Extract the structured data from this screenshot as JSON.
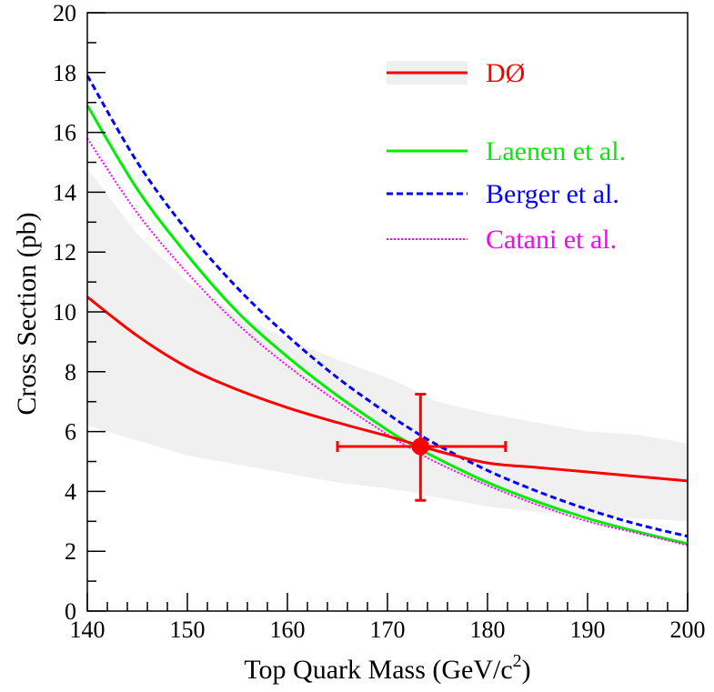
{
  "chart_data": {
    "type": "line",
    "xlabel": "Top Quark Mass (GeV/c",
    "xlabel_sup": "2",
    "xlabel_tail": ")",
    "ylabel": "Cross Section (pb)",
    "xlim": [
      140,
      200
    ],
    "ylim": [
      0,
      20
    ],
    "x_ticks": [
      "140",
      "150",
      "160",
      "170",
      "180",
      "190",
      "200"
    ],
    "y_ticks": [
      "0",
      "2",
      "4",
      "6",
      "8",
      "10",
      "12",
      "14",
      "16",
      "18",
      "20"
    ],
    "grid": false,
    "legend_position": "top-right",
    "band": {
      "name": "DØ",
      "color": "#f0f0f0",
      "x": [
        140,
        145,
        150,
        155,
        160,
        165,
        170,
        172,
        175,
        180,
        185,
        190,
        195,
        200
      ],
      "upper": [
        14.8,
        12.6,
        11.0,
        9.9,
        9.1,
        8.4,
        7.8,
        7.5,
        7.0,
        6.6,
        6.3,
        6.0,
        5.9,
        5.6
      ],
      "lower": [
        6.2,
        5.7,
        5.2,
        4.9,
        4.6,
        4.3,
        4.1,
        4.0,
        3.8,
        3.5,
        3.3,
        3.2,
        3.1,
        3.0
      ]
    },
    "series": [
      {
        "name": "DØ",
        "color": "#ff0000",
        "style": "solid",
        "x": [
          140,
          145,
          150,
          155,
          160,
          165,
          170,
          172,
          175,
          180,
          185,
          190,
          195,
          200
        ],
        "y": [
          10.5,
          9.2,
          8.15,
          7.4,
          6.8,
          6.3,
          5.85,
          5.65,
          5.35,
          4.95,
          4.8,
          4.65,
          4.5,
          4.35
        ]
      },
      {
        "name": "Laenen et al.",
        "color": "#00ee00",
        "style": "solid",
        "x": [
          140,
          145,
          150,
          155,
          160,
          165,
          170,
          172,
          175,
          180,
          185,
          190,
          195,
          200
        ],
        "y": [
          16.9,
          14.1,
          11.9,
          10.0,
          8.5,
          7.2,
          6.05,
          5.65,
          5.1,
          4.3,
          3.65,
          3.1,
          2.65,
          2.25
        ]
      },
      {
        "name": "Berger et al.",
        "color": "#0000ff",
        "style": "dashed",
        "x": [
          140,
          145,
          150,
          155,
          160,
          165,
          170,
          172,
          175,
          180,
          185,
          190,
          195,
          200
        ],
        "y": [
          17.9,
          15.0,
          12.7,
          10.8,
          9.2,
          7.8,
          6.6,
          6.15,
          5.55,
          4.7,
          4.0,
          3.4,
          2.9,
          2.5
        ]
      },
      {
        "name": "Catani et al.",
        "color": "#ff00ff",
        "style": "dotted",
        "x": [
          140,
          145,
          150,
          155,
          160,
          165,
          170,
          172,
          175,
          180,
          185,
          190,
          195,
          200
        ],
        "y": [
          15.8,
          13.3,
          11.3,
          9.6,
          8.2,
          7.0,
          5.9,
          5.5,
          4.95,
          4.2,
          3.55,
          3.0,
          2.6,
          2.2
        ]
      }
    ],
    "measurement": {
      "color": "#ff0000",
      "x": 173.3,
      "y": 5.5,
      "x_err": [
        165.0,
        181.8
      ],
      "y_err": [
        3.7,
        7.25
      ]
    }
  }
}
